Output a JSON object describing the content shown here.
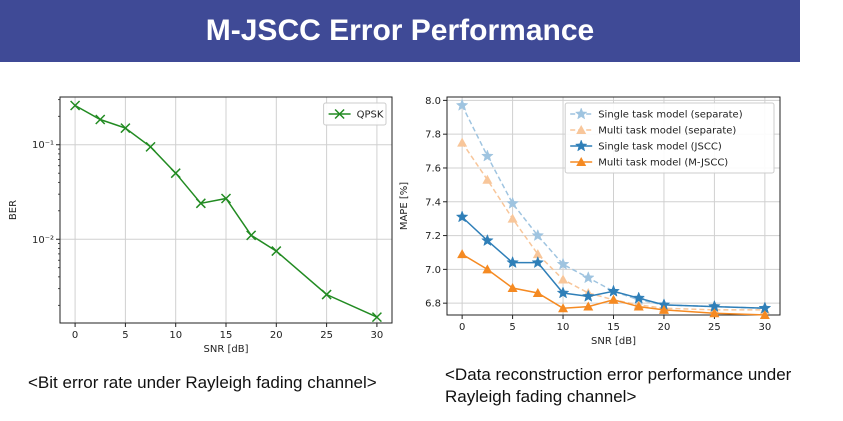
{
  "title": "M-JSCC Error Performance",
  "captions": {
    "left": "<Bit error rate under Rayleigh fading channel>",
    "right": "<Data reconstruction error performance under Rayleigh fading channel>"
  },
  "chart_data": [
    {
      "type": "line",
      "xlabel": "SNR [dB]",
      "ylabel": "BER",
      "yscale": "log",
      "xlim": [
        -1.5,
        31.5
      ],
      "ylim": [
        0.0013,
        0.32
      ],
      "x_ticks": [
        0,
        5,
        10,
        15,
        20,
        25,
        30
      ],
      "y_ticks": [
        {
          "value": 0.1,
          "label": "10⁻¹"
        },
        {
          "value": 0.01,
          "label": "10⁻²"
        }
      ],
      "grid": true,
      "legend_position": "top-right",
      "series": [
        {
          "name": "QPSK",
          "color": "#228b22",
          "marker": "x",
          "linestyle": "solid",
          "x": [
            0,
            2.5,
            5,
            7.5,
            10,
            12.5,
            15,
            17.5,
            20,
            25,
            30
          ],
          "y": [
            0.26,
            0.185,
            0.15,
            0.095,
            0.05,
            0.024,
            0.027,
            0.011,
            0.0075,
            0.0026,
            0.0015
          ]
        }
      ]
    },
    {
      "type": "line",
      "xlabel": "SNR [dB]",
      "ylabel": "MAPE [%]",
      "xlim": [
        -1.5,
        31.5
      ],
      "ylim": [
        6.73,
        8.02
      ],
      "x_ticks": [
        0,
        5,
        10,
        15,
        20,
        25,
        30
      ],
      "y_ticks": [
        6.8,
        7.0,
        7.2,
        7.4,
        7.6,
        7.8,
        8.0
      ],
      "grid": true,
      "legend_position": "top-right",
      "series": [
        {
          "name": "Single task model (separate)",
          "color": "#9fc4e0",
          "marker": "star",
          "linestyle": "dashed",
          "x": [
            0,
            2.5,
            5,
            7.5,
            10,
            12.5,
            15,
            17.5,
            20,
            25,
            30
          ],
          "y": [
            7.97,
            7.67,
            7.39,
            7.2,
            7.03,
            6.95,
            6.87,
            6.82,
            6.79,
            6.78,
            6.77
          ]
        },
        {
          "name": "Multi task model (separate)",
          "color": "#f8c69a",
          "marker": "triangle",
          "linestyle": "dashed",
          "x": [
            0,
            2.5,
            5,
            7.5,
            10,
            12.5,
            15,
            17.5,
            20,
            25,
            30
          ],
          "y": [
            7.75,
            7.53,
            7.3,
            7.09,
            6.94,
            6.86,
            6.82,
            6.79,
            6.77,
            6.76,
            6.76
          ]
        },
        {
          "name": "Single task model (JSCC)",
          "color": "#2f7fb8",
          "marker": "star",
          "linestyle": "solid",
          "x": [
            0,
            2.5,
            5,
            7.5,
            10,
            12.5,
            15,
            17.5,
            20,
            25,
            30
          ],
          "y": [
            7.31,
            7.17,
            7.04,
            7.04,
            6.86,
            6.84,
            6.87,
            6.83,
            6.79,
            6.78,
            6.77
          ]
        },
        {
          "name": "Multi task model (M-JSCC)",
          "color": "#f58a22",
          "marker": "triangle",
          "linestyle": "solid",
          "x": [
            0,
            2.5,
            5,
            7.5,
            10,
            12.5,
            15,
            17.5,
            20,
            25,
            30
          ],
          "y": [
            7.09,
            7.0,
            6.89,
            6.86,
            6.77,
            6.78,
            6.82,
            6.78,
            6.76,
            6.74,
            6.73
          ]
        }
      ]
    }
  ]
}
